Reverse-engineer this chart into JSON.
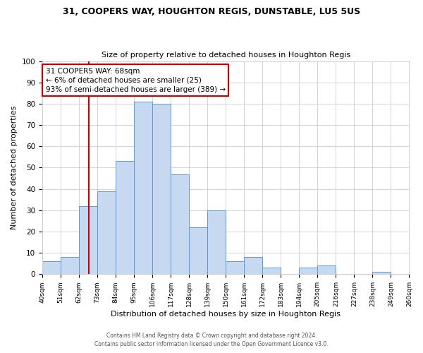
{
  "title": "31, COOPERS WAY, HOUGHTON REGIS, DUNSTABLE, LU5 5US",
  "subtitle": "Size of property relative to detached houses in Houghton Regis",
  "xlabel": "Distribution of detached houses by size in Houghton Regis",
  "ylabel": "Number of detached properties",
  "bar_edges": [
    40,
    51,
    62,
    73,
    84,
    95,
    106,
    117,
    128,
    139,
    150,
    161,
    172,
    183,
    194,
    205,
    216,
    227,
    238,
    249,
    260
  ],
  "bar_heights": [
    6,
    8,
    32,
    39,
    53,
    81,
    80,
    47,
    22,
    30,
    6,
    8,
    3,
    0,
    3,
    4,
    0,
    0,
    1,
    0
  ],
  "bar_color": "#c6d9f0",
  "bar_edge_color": "#5b9bd5",
  "vline_x": 68,
  "vline_color": "#cc0000",
  "ylim": [
    0,
    100
  ],
  "annotation_title": "31 COOPERS WAY: 68sqm",
  "annotation_line1": "← 6% of detached houses are smaller (25)",
  "annotation_line2": "93% of semi-detached houses are larger (389) →",
  "annotation_box_color": "#cc0000",
  "footer1": "Contains HM Land Registry data © Crown copyright and database right 2024.",
  "footer2": "Contains public sector information licensed under the Open Government Licence v3.0.",
  "tick_labels": [
    "40sqm",
    "51sqm",
    "62sqm",
    "73sqm",
    "84sqm",
    "95sqm",
    "106sqm",
    "117sqm",
    "128sqm",
    "139sqm",
    "150sqm",
    "161sqm",
    "172sqm",
    "183sqm",
    "194sqm",
    "205sqm",
    "216sqm",
    "227sqm",
    "238sqm",
    "249sqm",
    "260sqm"
  ],
  "yticks": [
    0,
    10,
    20,
    30,
    40,
    50,
    60,
    70,
    80,
    90,
    100
  ],
  "background_color": "#ffffff",
  "grid_color": "#cccccc",
  "title_fontsize": 9,
  "subtitle_fontsize": 8,
  "ylabel_fontsize": 8,
  "xlabel_fontsize": 8,
  "tick_fontsize": 6.5,
  "ytick_fontsize": 7.5,
  "footer_fontsize": 5.5,
  "annot_fontsize": 7.5
}
